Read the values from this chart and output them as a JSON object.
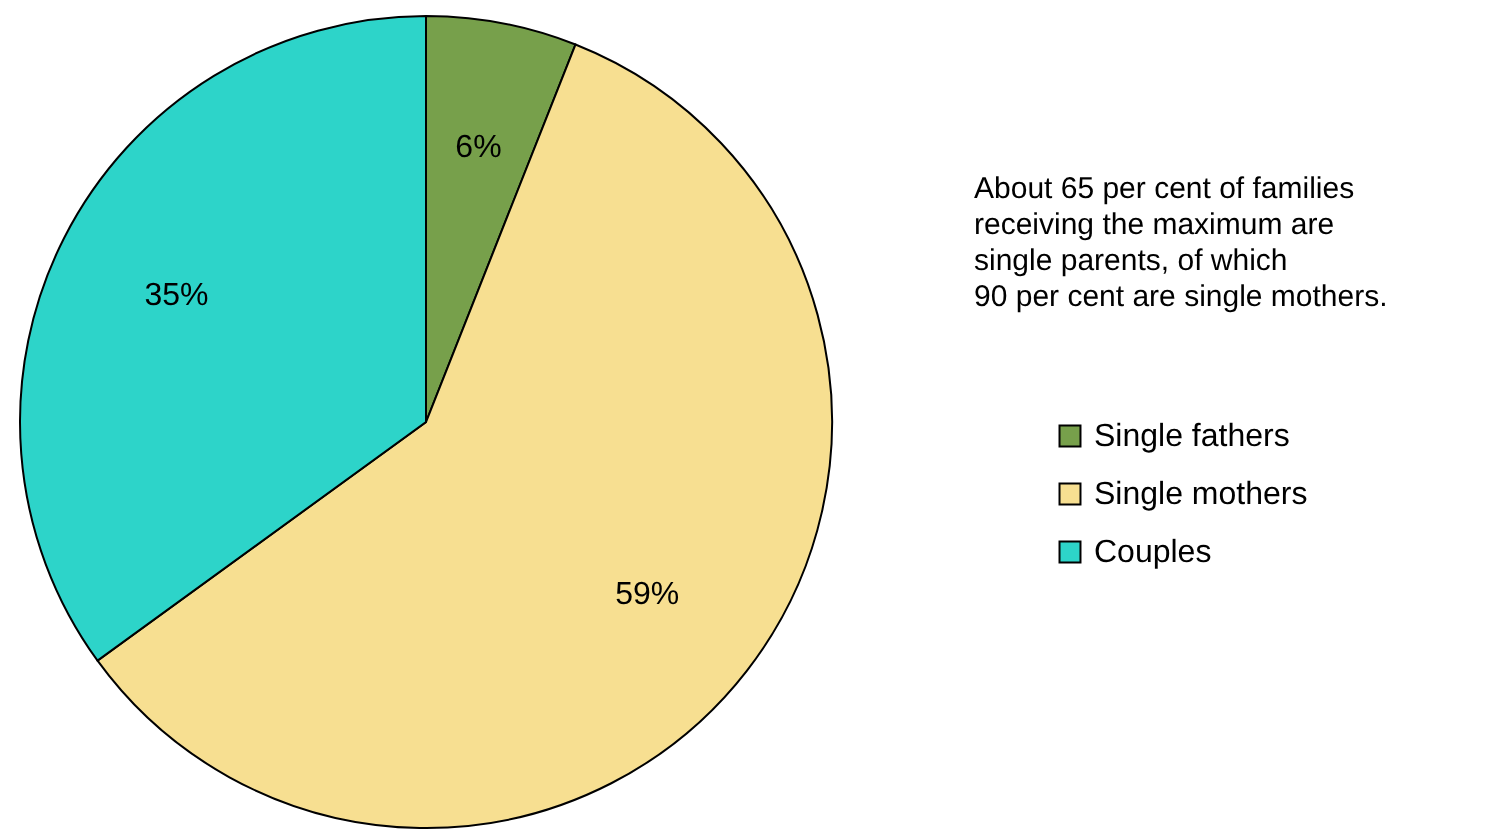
{
  "chart_data": {
    "type": "pie",
    "categories": [
      "Single fathers",
      "Single mothers",
      "Couples"
    ],
    "values": [
      6,
      59,
      35
    ],
    "colors": [
      "#77a04b",
      "#f7df91",
      "#2dd4c9"
    ],
    "value_labels": [
      "6%",
      "59%",
      "35%"
    ],
    "legend": "right",
    "annotations": [
      "About 65 per cent of families\nreceiving the maximum are\nsingle parents, of which\n90 per cent are single mothers."
    ]
  }
}
